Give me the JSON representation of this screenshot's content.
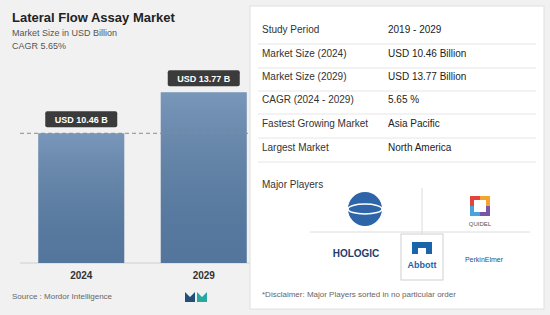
{
  "chart_data": {
    "type": "bar",
    "title": "Lateral Flow Assay Market",
    "subtitle": "Market Size in USD Billion",
    "annotations": [
      "CAGR 5.65%"
    ],
    "categories": [
      "2024",
      "2029"
    ],
    "values": [
      10.46,
      13.77
    ],
    "value_labels": [
      "USD 10.46 B",
      "USD 13.77 B"
    ],
    "color": "#5b80aa",
    "ylim": [
      0,
      15
    ],
    "tick_labels": "x",
    "data_labels": true,
    "grid": false,
    "source": "Source : Mordor Intelligence"
  },
  "summary": {
    "rows": [
      [
        "Study Period",
        "2019 - 2029"
      ],
      [
        "Market Size (2024)",
        "USD 10.46 Billion"
      ],
      [
        "Market Size (2029)",
        "USD 13.77 Billion"
      ],
      [
        "CAGR (2024 - 2029)",
        "5.65 %"
      ],
      [
        "Fastest Growing Market",
        "Asia Pacific"
      ],
      [
        "Largest Market",
        "North America"
      ]
    ]
  },
  "players": {
    "title": "Major Players",
    "names": [
      "QUIDEL",
      "HOLOGIC",
      "Abbott",
      "PerkinElmer"
    ],
    "disclaimer": "*Disclaimer: Major Players sorted in no particular order"
  }
}
